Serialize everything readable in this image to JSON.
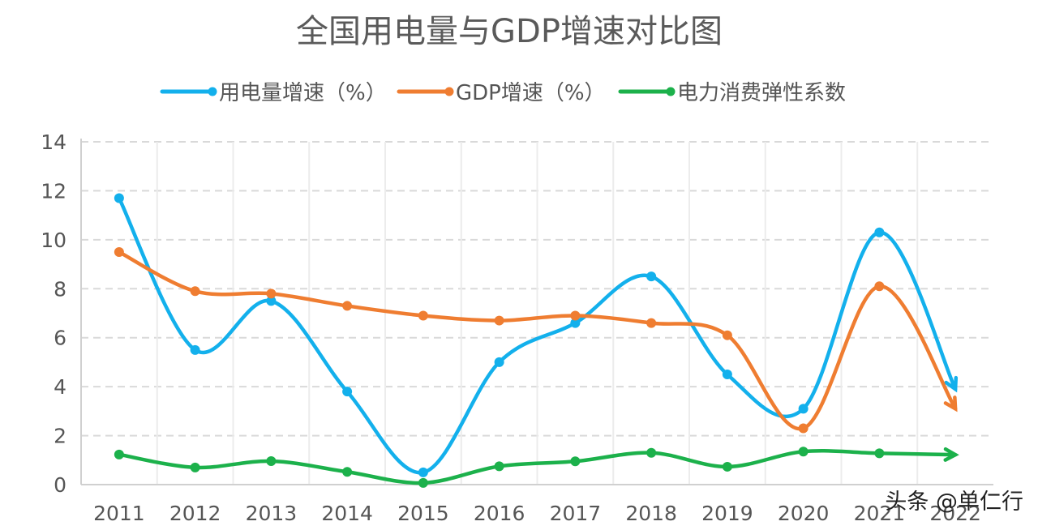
{
  "chart_data": {
    "type": "line",
    "title": "全国用电量与GDP增速对比图",
    "xlabel": "",
    "ylabel": "",
    "categories": [
      "2011",
      "2012",
      "2013",
      "2014",
      "2015",
      "2016",
      "2017",
      "2018",
      "2019",
      "2020",
      "2021",
      "2022"
    ],
    "ylim": [
      0,
      14
    ],
    "yticks": [
      0,
      2,
      4,
      6,
      8,
      10,
      12,
      14
    ],
    "grid": true,
    "legend_position": "top",
    "series": [
      {
        "name": "用电量增速（%）",
        "color": "#13b0ec",
        "values": [
          11.7,
          5.5,
          7.5,
          3.8,
          0.5,
          5.0,
          6.6,
          8.5,
          4.5,
          3.1,
          10.3,
          3.9
        ]
      },
      {
        "name": "GDP增速（%）",
        "color": "#ef7d31",
        "values": [
          9.5,
          7.9,
          7.8,
          7.3,
          6.9,
          6.7,
          6.9,
          6.6,
          6.1,
          2.3,
          8.1,
          3.1
        ]
      },
      {
        "name": "电力消费弹性系数",
        "color": "#1cb14b",
        "values": [
          1.23,
          0.7,
          0.96,
          0.52,
          0.07,
          0.75,
          0.95,
          1.3,
          0.73,
          1.35,
          1.28,
          1.22
        ]
      }
    ]
  },
  "watermark": "头条 @单仁行"
}
